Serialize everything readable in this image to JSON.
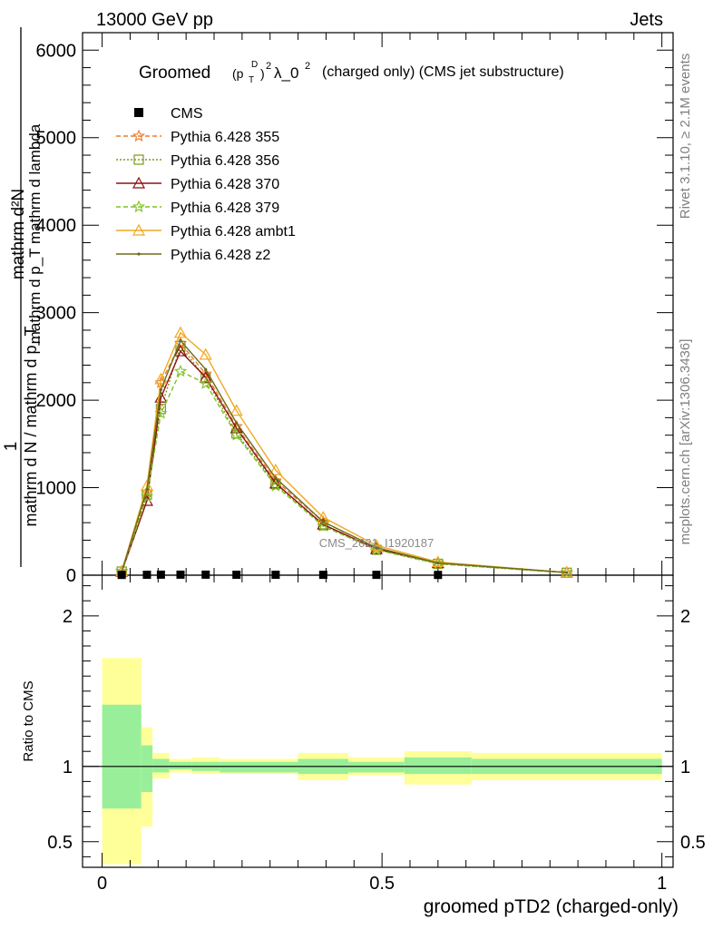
{
  "header": {
    "energy_label": "13000 GeV pp",
    "category_label": "Jets"
  },
  "side_labels": {
    "rivet": "Rivet 3.1.10, ≥ 2.1M events",
    "source": "mcplots.cern.ch [arXiv:1306.3436]"
  },
  "chart_data": {
    "type": "line",
    "title": "Groomed (p_T^D)^2 λ_0^2 (charged only) (CMS jet substructure)",
    "title_parts": {
      "prefix": "Groomed",
      "p": "(p",
      "sup_d": "D",
      "sub_t": "T",
      "close": ")",
      "sup_2": "2",
      "lambda": "λ_0",
      "sup_lambda": "2",
      "suffix": "(charged only) (CMS jet substructure)"
    },
    "watermark": "CMS_2021_I1920187",
    "ylabel_top": {
      "line1": "mathrm d²N",
      "line2": "mathrm d p_T mathrm d lambda",
      "frac_numer": "1",
      "frac_denom": "mathrm d N / mathrm d p_T"
    },
    "xlabel": "groomed pTD2 (charged-only)",
    "ratio_ylabel": "Ratio to CMS",
    "xlim": [
      -0.035,
      1.02
    ],
    "ylim_main": [
      0,
      6200
    ],
    "ylim_ratio": [
      0.33,
      2.27
    ],
    "x_ticks": [
      0,
      0.5,
      1
    ],
    "x_tick_labels": [
      "0",
      "0.5",
      "1"
    ],
    "y_ticks_main": [
      0,
      1000,
      2000,
      3000,
      4000,
      5000,
      6000
    ],
    "y_tick_labels_main": [
      "0",
      "1000",
      "2000",
      "3000",
      "4000",
      "5000",
      "6000"
    ],
    "y_ticks_ratio": [
      0.5,
      1,
      2
    ],
    "y_tick_labels_ratio": [
      "0.5",
      "1",
      "2"
    ],
    "legend_position": "top-left",
    "x": [
      0.035,
      0.08,
      0.105,
      0.14,
      0.185,
      0.24,
      0.31,
      0.395,
      0.49,
      0.6,
      0.83
    ],
    "cms": {
      "name": "CMS",
      "x": [
        0.035,
        0.08,
        0.105,
        0.14,
        0.185,
        0.24,
        0.31,
        0.395,
        0.49,
        0.6
      ],
      "values": [
        3,
        5,
        6,
        6,
        6,
        5,
        5,
        4,
        4,
        3
      ],
      "color": "#000000"
    },
    "series": [
      {
        "name": "Pythia 6.428 355",
        "values": [
          45,
          950,
          2200,
          2650,
          2300,
          1700,
          1080,
          610,
          310,
          140,
          30
        ],
        "color": "#f07a28",
        "dash": "5,3",
        "marker": "star"
      },
      {
        "name": "Pythia 6.428 356",
        "values": [
          42,
          920,
          1900,
          2620,
          2250,
          1620,
          1040,
          570,
          290,
          130,
          28
        ],
        "color": "#7c9a1a",
        "dash": "2,2",
        "marker": "square"
      },
      {
        "name": "Pythia 6.428 370",
        "values": [
          40,
          850,
          2030,
          2560,
          2260,
          1680,
          1050,
          580,
          300,
          140,
          30
        ],
        "color": "#8b1010",
        "dash": "",
        "marker": "triangle"
      },
      {
        "name": "Pythia 6.428 379",
        "values": [
          40,
          900,
          1850,
          2330,
          2190,
          1600,
          1020,
          560,
          290,
          130,
          28
        ],
        "color": "#7ec224",
        "dash": "5,3",
        "marker": "star"
      },
      {
        "name": "Pythia 6.428 ambt1",
        "values": [
          45,
          1020,
          2240,
          2770,
          2520,
          1880,
          1200,
          660,
          340,
          150,
          30
        ],
        "color": "#f0a820",
        "dash": "",
        "marker": "triangle"
      },
      {
        "name": "Pythia 6.428 z2",
        "values": [
          42,
          980,
          2120,
          2680,
          2350,
          1740,
          1110,
          610,
          315,
          140,
          30
        ],
        "color": "#6b6b1c",
        "dash": "",
        "marker": "dot"
      }
    ],
    "ratio_bands": [
      {
        "x0": 0.0,
        "x1": 0.07,
        "inner": [
          0.72,
          1.41
        ],
        "outer": [
          0.35,
          1.72
        ]
      },
      {
        "x0": 0.07,
        "x1": 0.09,
        "inner": [
          0.83,
          1.14
        ],
        "outer": [
          0.6,
          1.26
        ]
      },
      {
        "x0": 0.09,
        "x1": 0.12,
        "inner": [
          0.96,
          1.05
        ],
        "outer": [
          0.92,
          1.09
        ]
      },
      {
        "x0": 0.12,
        "x1": 0.16,
        "inner": [
          0.98,
          1.03
        ],
        "outer": [
          0.96,
          1.05
        ]
      },
      {
        "x0": 0.16,
        "x1": 0.21,
        "inner": [
          0.97,
          1.03
        ],
        "outer": [
          0.95,
          1.06
        ]
      },
      {
        "x0": 0.21,
        "x1": 0.35,
        "inner": [
          0.96,
          1.03
        ],
        "outer": [
          0.95,
          1.05
        ]
      },
      {
        "x0": 0.35,
        "x1": 0.44,
        "inner": [
          0.95,
          1.05
        ],
        "outer": [
          0.91,
          1.09
        ]
      },
      {
        "x0": 0.44,
        "x1": 0.54,
        "inner": [
          0.96,
          1.03
        ],
        "outer": [
          0.94,
          1.06
        ]
      },
      {
        "x0": 0.54,
        "x1": 0.66,
        "inner": [
          0.95,
          1.06
        ],
        "outer": [
          0.88,
          1.1
        ]
      },
      {
        "x0": 0.66,
        "x1": 1.0,
        "inner": [
          0.95,
          1.05
        ],
        "outer": [
          0.91,
          1.09
        ]
      }
    ],
    "band_colors": {
      "inner": "#99ef99",
      "outer": "#ffff99"
    }
  }
}
